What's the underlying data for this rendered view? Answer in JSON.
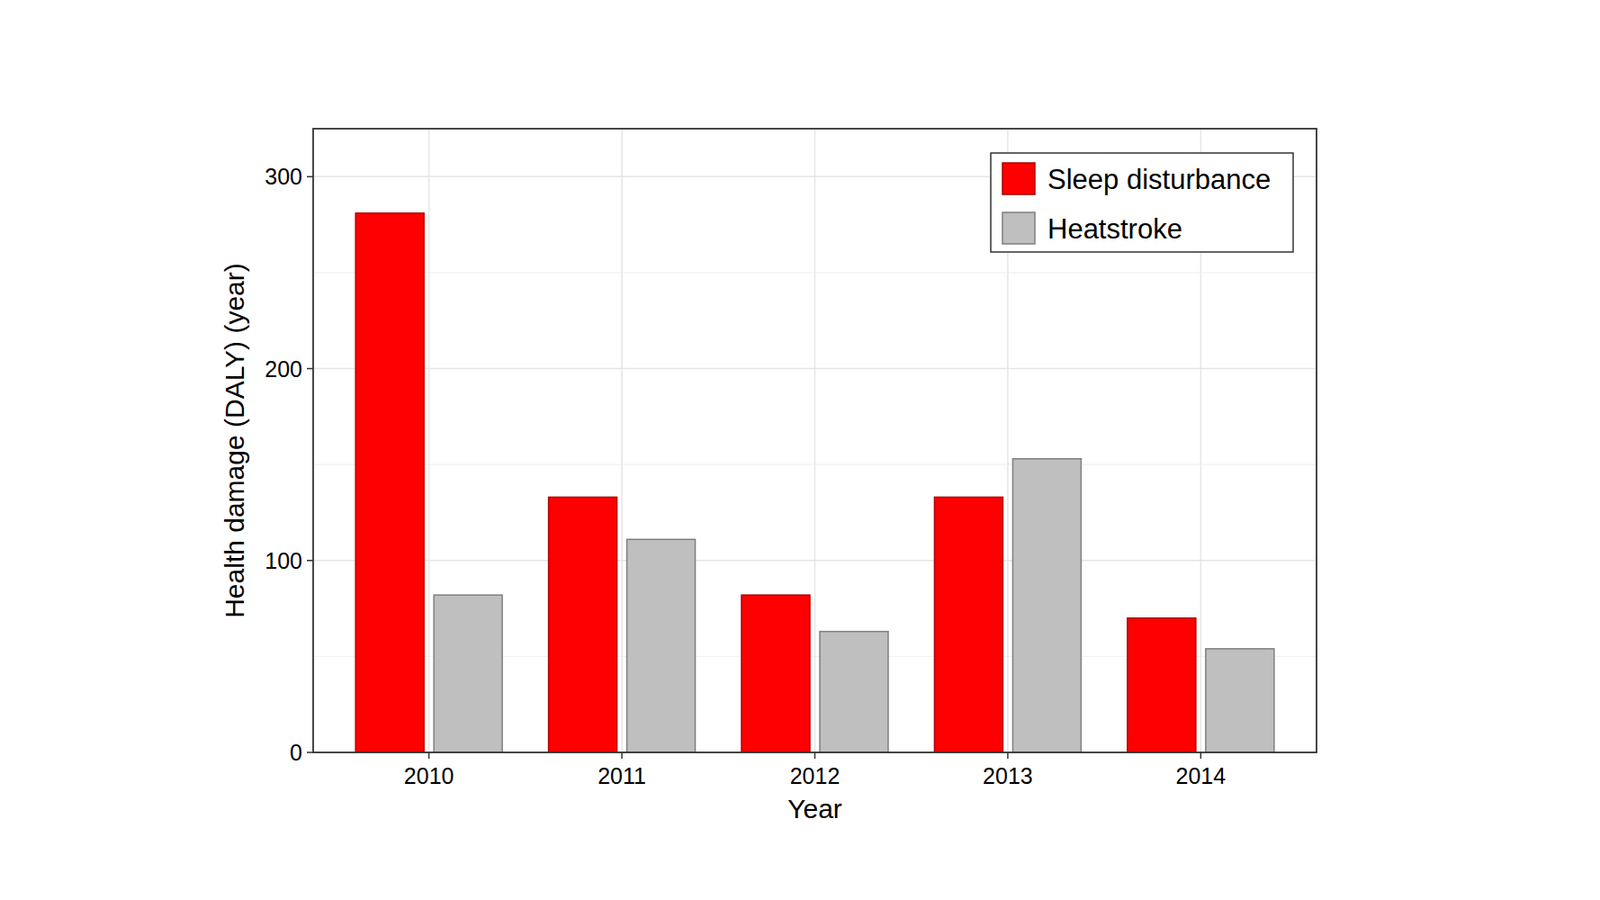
{
  "chart_data": {
    "type": "bar",
    "x_label": "Year",
    "y_label": "Health damage (DALY) (year)",
    "categories": [
      "2010",
      "2011",
      "2012",
      "2013",
      "2014"
    ],
    "series": [
      {
        "name": "Sleep disturbance",
        "color": "#ff0000",
        "values": [
          281,
          133,
          82,
          133,
          70
        ]
      },
      {
        "name": "Heatstroke",
        "color": "#bfbfbf",
        "values": [
          82,
          111,
          63,
          153,
          54
        ]
      }
    ],
    "ylim": [
      0,
      325
    ],
    "yticks": [
      0,
      100,
      200,
      300
    ],
    "grid": true,
    "legend": "top-right"
  }
}
